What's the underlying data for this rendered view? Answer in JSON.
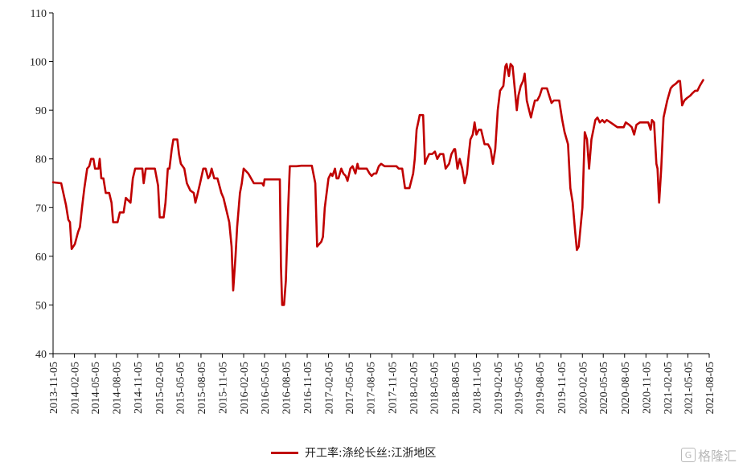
{
  "chart_data": {
    "type": "line",
    "title": "",
    "xlabel": "",
    "ylabel": "",
    "ylim": [
      40,
      110
    ],
    "yticks": [
      40,
      50,
      60,
      70,
      80,
      90,
      100,
      110
    ],
    "xticks": [
      "2013-11-05",
      "2014-02-05",
      "2014-05-05",
      "2014-08-05",
      "2014-11-05",
      "2015-02-05",
      "2015-05-05",
      "2015-08-05",
      "2015-11-05",
      "2016-02-05",
      "2016-05-05",
      "2016-08-05",
      "2016-11-05",
      "2017-02-05",
      "2017-05-05",
      "2017-08-05",
      "2017-11-05",
      "2018-02-05",
      "2018-05-05",
      "2018-08-05",
      "2018-11-05",
      "2019-02-05",
      "2019-05-05",
      "2019-08-05",
      "2019-11-05",
      "2020-02-05",
      "2020-05-05",
      "2020-08-05",
      "2020-11-05",
      "2021-02-05",
      "2021-05-05",
      "2021-08-05"
    ],
    "grid": false,
    "legend_position": "bottom",
    "series": [
      {
        "name": "开工率:涤纶长丝:江浙地区",
        "color": "#c00000",
        "points": [
          [
            "2013-11-05",
            75.2
          ],
          [
            "2013-12-10",
            75.0
          ],
          [
            "2013-12-31",
            70.5
          ],
          [
            "2014-01-10",
            67.5
          ],
          [
            "2014-01-17",
            67.0
          ],
          [
            "2014-01-24",
            61.5
          ],
          [
            "2014-02-07",
            62.5
          ],
          [
            "2014-02-21",
            65.0
          ],
          [
            "2014-03-01",
            66.0
          ],
          [
            "2014-03-10",
            70.0
          ],
          [
            "2014-03-20",
            74.0
          ],
          [
            "2014-04-01",
            78.0
          ],
          [
            "2014-04-10",
            78.5
          ],
          [
            "2014-04-18",
            80.0
          ],
          [
            "2014-04-28",
            80.0
          ],
          [
            "2014-05-05",
            78.0
          ],
          [
            "2014-05-20",
            78.0
          ],
          [
            "2014-05-25",
            80.0
          ],
          [
            "2014-06-01",
            76.0
          ],
          [
            "2014-06-10",
            76.0
          ],
          [
            "2014-06-20",
            73.0
          ],
          [
            "2014-07-05",
            73.0
          ],
          [
            "2014-07-15",
            71.0
          ],
          [
            "2014-07-22",
            67.0
          ],
          [
            "2014-08-10",
            67.0
          ],
          [
            "2014-08-20",
            69.0
          ],
          [
            "2014-09-05",
            69.0
          ],
          [
            "2014-09-15",
            72.0
          ],
          [
            "2014-10-05",
            71.0
          ],
          [
            "2014-10-15",
            76.0
          ],
          [
            "2014-10-25",
            78.0
          ],
          [
            "2014-11-25",
            78.0
          ],
          [
            "2014-12-01",
            75.0
          ],
          [
            "2014-12-10",
            78.0
          ],
          [
            "2015-01-10",
            78.0
          ],
          [
            "2015-01-18",
            78.0
          ],
          [
            "2015-02-01",
            74.5
          ],
          [
            "2015-02-08",
            68.0
          ],
          [
            "2015-02-25",
            68.0
          ],
          [
            "2015-03-05",
            71.0
          ],
          [
            "2015-03-15",
            78.0
          ],
          [
            "2015-03-22",
            78.0
          ],
          [
            "2015-04-01",
            82.0
          ],
          [
            "2015-04-08",
            84.0
          ],
          [
            "2015-04-25",
            84.0
          ],
          [
            "2015-05-02",
            81.0
          ],
          [
            "2015-05-10",
            79.0
          ],
          [
            "2015-05-25",
            78.0
          ],
          [
            "2015-06-05",
            75.0
          ],
          [
            "2015-06-20",
            73.5
          ],
          [
            "2015-07-05",
            73.0
          ],
          [
            "2015-07-12",
            71.0
          ],
          [
            "2015-07-20",
            72.5
          ],
          [
            "2015-08-01",
            75.0
          ],
          [
            "2015-08-15",
            78.0
          ],
          [
            "2015-08-25",
            78.0
          ],
          [
            "2015-09-05",
            76.0
          ],
          [
            "2015-09-12",
            76.5
          ],
          [
            "2015-09-20",
            78.0
          ],
          [
            "2015-10-01",
            76.0
          ],
          [
            "2015-10-15",
            76.0
          ],
          [
            "2015-11-01",
            73.0
          ],
          [
            "2015-11-10",
            72.0
          ],
          [
            "2015-11-20",
            70.0
          ],
          [
            "2015-12-05",
            67.0
          ],
          [
            "2015-12-15",
            62.0
          ],
          [
            "2015-12-22",
            53.0
          ],
          [
            "2016-01-01",
            60.0
          ],
          [
            "2016-01-08",
            66.0
          ],
          [
            "2016-01-20",
            73.0
          ],
          [
            "2016-01-28",
            75.0
          ],
          [
            "2016-02-05",
            78.0
          ],
          [
            "2016-02-25",
            77.0
          ],
          [
            "2016-03-20",
            75.0
          ],
          [
            "2016-04-25",
            75.0
          ],
          [
            "2016-05-01",
            74.5
          ],
          [
            "2016-05-05",
            75.8
          ],
          [
            "2016-06-20",
            75.8
          ],
          [
            "2016-07-10",
            75.8
          ],
          [
            "2016-07-15",
            58.0
          ],
          [
            "2016-07-20",
            50.0
          ],
          [
            "2016-07-28",
            50.0
          ],
          [
            "2016-08-05",
            55.0
          ],
          [
            "2016-08-15",
            70.0
          ],
          [
            "2016-08-22",
            78.5
          ],
          [
            "2016-09-20",
            78.5
          ],
          [
            "2016-10-10",
            78.6
          ],
          [
            "2016-11-25",
            78.6
          ],
          [
            "2016-12-10",
            75.0
          ],
          [
            "2016-12-18",
            62.0
          ],
          [
            "2017-01-05",
            63.0
          ],
          [
            "2017-01-12",
            64.0
          ],
          [
            "2017-01-20",
            70.0
          ],
          [
            "2017-02-05",
            76.0
          ],
          [
            "2017-02-15",
            77.0
          ],
          [
            "2017-02-22",
            76.5
          ],
          [
            "2017-03-05",
            78.0
          ],
          [
            "2017-03-12",
            76.0
          ],
          [
            "2017-03-20",
            76.0
          ],
          [
            "2017-04-01",
            78.0
          ],
          [
            "2017-04-10",
            77.0
          ],
          [
            "2017-04-20",
            76.5
          ],
          [
            "2017-04-28",
            75.5
          ],
          [
            "2017-05-10",
            78.0
          ],
          [
            "2017-05-20",
            78.5
          ],
          [
            "2017-06-01",
            77.0
          ],
          [
            "2017-06-10",
            79.0
          ],
          [
            "2017-06-15",
            78.0
          ],
          [
            "2017-07-20",
            78.0
          ],
          [
            "2017-08-01",
            77.0
          ],
          [
            "2017-08-10",
            76.5
          ],
          [
            "2017-08-20",
            77.0
          ],
          [
            "2017-08-30",
            77.0
          ],
          [
            "2017-09-10",
            78.5
          ],
          [
            "2017-09-20",
            79.0
          ],
          [
            "2017-10-05",
            78.5
          ],
          [
            "2017-10-15",
            78.5
          ],
          [
            "2017-11-25",
            78.5
          ],
          [
            "2017-12-05",
            78.0
          ],
          [
            "2017-12-20",
            78.0
          ],
          [
            "2018-01-01",
            74.0
          ],
          [
            "2018-01-20",
            74.0
          ],
          [
            "2018-02-05",
            77.0
          ],
          [
            "2018-02-12",
            80.0
          ],
          [
            "2018-02-20",
            86.0
          ],
          [
            "2018-03-01",
            88.0
          ],
          [
            "2018-03-05",
            89.0
          ],
          [
            "2018-03-20",
            89.0
          ],
          [
            "2018-03-28",
            79.0
          ],
          [
            "2018-04-05",
            80.0
          ],
          [
            "2018-04-15",
            81.0
          ],
          [
            "2018-04-28",
            81.0
          ],
          [
            "2018-05-10",
            81.5
          ],
          [
            "2018-05-20",
            80.0
          ],
          [
            "2018-06-01",
            81.0
          ],
          [
            "2018-06-15",
            81.0
          ],
          [
            "2018-06-25",
            78.0
          ],
          [
            "2018-07-10",
            79.0
          ],
          [
            "2018-07-20",
            81.0
          ],
          [
            "2018-08-01",
            82.0
          ],
          [
            "2018-08-05",
            82.0
          ],
          [
            "2018-08-15",
            78.0
          ],
          [
            "2018-08-25",
            80.0
          ],
          [
            "2018-09-05",
            78.0
          ],
          [
            "2018-09-15",
            75.0
          ],
          [
            "2018-09-25",
            77.0
          ],
          [
            "2018-10-01",
            80.0
          ],
          [
            "2018-10-10",
            84.0
          ],
          [
            "2018-10-20",
            85.0
          ],
          [
            "2018-10-28",
            87.5
          ],
          [
            "2018-11-05",
            85.0
          ],
          [
            "2018-11-15",
            86.0
          ],
          [
            "2018-11-25",
            86.0
          ],
          [
            "2018-12-10",
            83.0
          ],
          [
            "2018-12-25",
            83.0
          ],
          [
            "2019-01-05",
            82.0
          ],
          [
            "2019-01-15",
            79.0
          ],
          [
            "2019-01-25",
            82.0
          ],
          [
            "2019-02-05",
            90.0
          ],
          [
            "2019-02-15",
            94.0
          ],
          [
            "2019-03-01",
            95.0
          ],
          [
            "2019-03-10",
            99.0
          ],
          [
            "2019-03-15",
            99.5
          ],
          [
            "2019-03-25",
            97.0
          ],
          [
            "2019-04-01",
            99.5
          ],
          [
            "2019-04-10",
            99.0
          ],
          [
            "2019-04-20",
            94.0
          ],
          [
            "2019-04-28",
            90.0
          ],
          [
            "2019-05-05",
            93.0
          ],
          [
            "2019-05-15",
            95.0
          ],
          [
            "2019-05-25",
            96.0
          ],
          [
            "2019-06-01",
            97.5
          ],
          [
            "2019-06-10",
            92.0
          ],
          [
            "2019-06-20",
            90.0
          ],
          [
            "2019-06-28",
            88.5
          ],
          [
            "2019-07-05",
            90.0
          ],
          [
            "2019-07-15",
            92.0
          ],
          [
            "2019-07-25",
            92.0
          ],
          [
            "2019-08-05",
            93.0
          ],
          [
            "2019-08-15",
            94.5
          ],
          [
            "2019-09-05",
            94.5
          ],
          [
            "2019-09-15",
            93.0
          ],
          [
            "2019-09-25",
            91.5
          ],
          [
            "2019-10-05",
            92.0
          ],
          [
            "2019-10-15",
            92.0
          ],
          [
            "2019-10-28",
            92.0
          ],
          [
            "2019-11-10",
            88.0
          ],
          [
            "2019-11-20",
            85.5
          ],
          [
            "2019-12-05",
            83.0
          ],
          [
            "2019-12-15",
            74.0
          ],
          [
            "2019-12-25",
            71.0
          ],
          [
            "2020-01-05",
            65.0
          ],
          [
            "2020-01-12",
            61.3
          ],
          [
            "2020-01-20",
            62.0
          ],
          [
            "2020-02-05",
            70.0
          ],
          [
            "2020-02-15",
            85.5
          ],
          [
            "2020-02-25",
            84.0
          ],
          [
            "2020-03-05",
            78.0
          ],
          [
            "2020-03-15",
            84.0
          ],
          [
            "2020-04-01",
            88.0
          ],
          [
            "2020-04-10",
            88.5
          ],
          [
            "2020-04-20",
            87.5
          ],
          [
            "2020-05-01",
            88.0
          ],
          [
            "2020-05-10",
            87.5
          ],
          [
            "2020-05-20",
            88.0
          ],
          [
            "2020-06-05",
            87.5
          ],
          [
            "2020-06-20",
            87.0
          ],
          [
            "2020-07-05",
            86.5
          ],
          [
            "2020-07-20",
            86.5
          ],
          [
            "2020-08-01",
            86.5
          ],
          [
            "2020-08-10",
            87.5
          ],
          [
            "2020-08-25",
            87.0
          ],
          [
            "2020-09-05",
            86.5
          ],
          [
            "2020-09-15",
            85.0
          ],
          [
            "2020-09-25",
            87.0
          ],
          [
            "2020-10-10",
            87.5
          ],
          [
            "2020-10-20",
            87.5
          ],
          [
            "2020-11-01",
            87.5
          ],
          [
            "2020-11-15",
            87.5
          ],
          [
            "2020-11-25",
            86.0
          ],
          [
            "2020-12-01",
            88.0
          ],
          [
            "2020-12-10",
            87.5
          ],
          [
            "2020-12-20",
            79.0
          ],
          [
            "2020-12-25",
            78.0
          ],
          [
            "2021-01-01",
            71.0
          ],
          [
            "2021-01-10",
            78.0
          ],
          [
            "2021-01-20",
            88.5
          ],
          [
            "2021-02-05",
            92.0
          ],
          [
            "2021-02-20",
            94.5
          ],
          [
            "2021-03-01",
            95.0
          ],
          [
            "2021-03-15",
            95.5
          ],
          [
            "2021-03-25",
            96.0
          ],
          [
            "2021-04-01",
            96.0
          ],
          [
            "2021-04-10",
            91.0
          ],
          [
            "2021-04-20",
            92.0
          ],
          [
            "2021-05-01",
            92.5
          ],
          [
            "2021-05-15",
            93.0
          ],
          [
            "2021-05-25",
            93.5
          ],
          [
            "2021-06-05",
            94.0
          ],
          [
            "2021-06-15",
            94.0
          ],
          [
            "2021-06-25",
            95.0
          ],
          [
            "2021-07-10",
            96.2
          ]
        ]
      }
    ]
  },
  "legend": {
    "label": "开工率:涤纶长丝:江浙地区"
  },
  "watermark": {
    "logo_text": "G",
    "text": "格隆汇"
  }
}
